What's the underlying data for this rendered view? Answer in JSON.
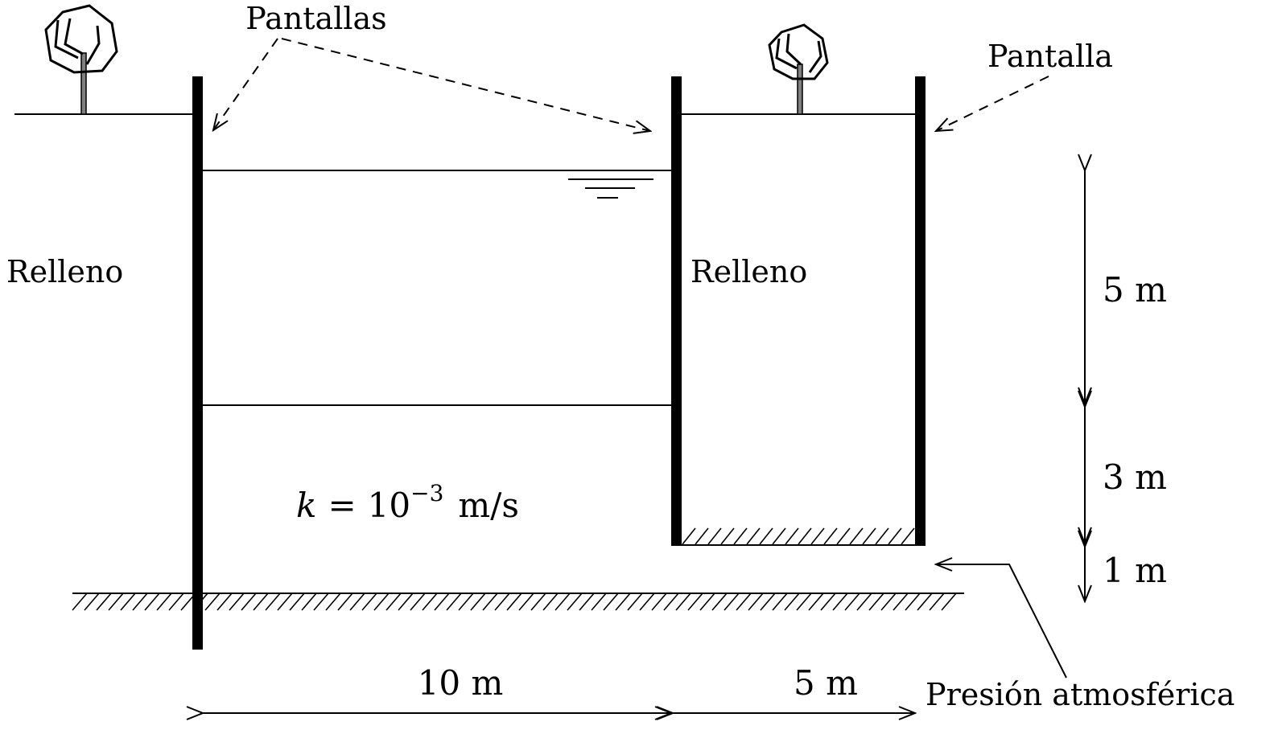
{
  "labels": {
    "screens_plural": "Pantallas",
    "screen_single": "Pantalla",
    "fill_left": "Relleno",
    "fill_right": "Relleno",
    "atmospheric_pressure": "Presión atmosférica"
  },
  "permeability": {
    "symbol": "k",
    "equals": "=",
    "base": "10",
    "exponent": "−3",
    "units": "m/s"
  },
  "dimensions": {
    "horizontal_left": "10 m",
    "horizontal_right": "5 m",
    "vertical_top": "5 m",
    "vertical_middle": "3 m",
    "vertical_bottom": "1 m"
  },
  "colors": {
    "ink": "#000000",
    "tree_trunk": "#808080",
    "background": "#ffffff"
  },
  "icons": {
    "water_table": "water-table-symbol",
    "trees": "tree-icon"
  }
}
